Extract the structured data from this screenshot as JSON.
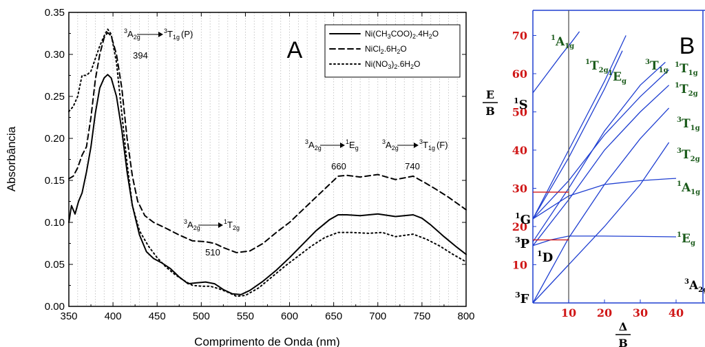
{
  "chart_data": [
    {
      "type": "line",
      "panel_label": "A",
      "xlabel": "Comprimento de Onda (nm)",
      "ylabel": "Absorbância",
      "xlim": [
        350,
        800
      ],
      "ylim": [
        0.0,
        0.35
      ],
      "x_ticks": [
        "350",
        "400",
        "450",
        "500",
        "550",
        "600",
        "650",
        "700",
        "750",
        "800"
      ],
      "y_ticks": [
        "0.00",
        "0.05",
        "0.10",
        "0.15",
        "0.20",
        "0.25",
        "0.30",
        "0.35"
      ],
      "grid": "vertical dotted every 10 nm",
      "legend_position": "top-right",
      "series": [
        {
          "name": "Ni(CH3COO)2.4H2O",
          "legend": {
            "base": "Ni(CH",
            "s1": "3",
            "m1": "COO)",
            "s2": "2",
            "m2": ".4H",
            "s3": "2",
            "end": "O"
          },
          "style": "solid",
          "points": [
            [
              350,
              0.1
            ],
            [
              353,
              0.12
            ],
            [
              357,
              0.11
            ],
            [
              361,
              0.125
            ],
            [
              365,
              0.135
            ],
            [
              370,
              0.16
            ],
            [
              375,
              0.19
            ],
            [
              380,
              0.23
            ],
            [
              385,
              0.26
            ],
            [
              390,
              0.272
            ],
            [
              394,
              0.276
            ],
            [
              398,
              0.272
            ],
            [
              404,
              0.25
            ],
            [
              410,
              0.21
            ],
            [
              416,
              0.16
            ],
            [
              422,
              0.12
            ],
            [
              430,
              0.085
            ],
            [
              438,
              0.065
            ],
            [
              446,
              0.057
            ],
            [
              455,
              0.052
            ],
            [
              465,
              0.045
            ],
            [
              475,
              0.035
            ],
            [
              485,
              0.027
            ],
            [
              495,
              0.028
            ],
            [
              505,
              0.029
            ],
            [
              515,
              0.027
            ],
            [
              525,
              0.02
            ],
            [
              535,
              0.015
            ],
            [
              545,
              0.014
            ],
            [
              555,
              0.019
            ],
            [
              570,
              0.03
            ],
            [
              585,
              0.043
            ],
            [
              600,
              0.058
            ],
            [
              615,
              0.074
            ],
            [
              630,
              0.09
            ],
            [
              645,
              0.103
            ],
            [
              655,
              0.109
            ],
            [
              665,
              0.109
            ],
            [
              680,
              0.108
            ],
            [
              700,
              0.11
            ],
            [
              720,
              0.107
            ],
            [
              740,
              0.109
            ],
            [
              750,
              0.105
            ],
            [
              760,
              0.097
            ],
            [
              775,
              0.083
            ],
            [
              790,
              0.07
            ],
            [
              800,
              0.062
            ]
          ]
        },
        {
          "name": "NiCl2.6H2O",
          "legend": {
            "base": "NiCl",
            "s1": "2",
            "m1": ".6H",
            "s2": "2",
            "m2": "O",
            "s3": "",
            "end": ""
          },
          "style": "dashed",
          "points": [
            [
              350,
              0.152
            ],
            [
              355,
              0.155
            ],
            [
              360,
              0.165
            ],
            [
              365,
              0.18
            ],
            [
              370,
              0.19
            ],
            [
              375,
              0.225
            ],
            [
              380,
              0.27
            ],
            [
              385,
              0.3
            ],
            [
              390,
              0.32
            ],
            [
              394,
              0.326
            ],
            [
              398,
              0.322
            ],
            [
              404,
              0.3
            ],
            [
              410,
              0.26
            ],
            [
              416,
              0.2
            ],
            [
              422,
              0.155
            ],
            [
              428,
              0.125
            ],
            [
              436,
              0.108
            ],
            [
              446,
              0.1
            ],
            [
              460,
              0.093
            ],
            [
              475,
              0.085
            ],
            [
              490,
              0.078
            ],
            [
              505,
              0.077
            ],
            [
              515,
              0.075
            ],
            [
              525,
              0.07
            ],
            [
              540,
              0.064
            ],
            [
              555,
              0.066
            ],
            [
              570,
              0.075
            ],
            [
              585,
              0.088
            ],
            [
              600,
              0.1
            ],
            [
              615,
              0.115
            ],
            [
              630,
              0.13
            ],
            [
              645,
              0.145
            ],
            [
              655,
              0.155
            ],
            [
              665,
              0.156
            ],
            [
              680,
              0.154
            ],
            [
              700,
              0.157
            ],
            [
              720,
              0.151
            ],
            [
              740,
              0.155
            ],
            [
              752,
              0.148
            ],
            [
              765,
              0.14
            ],
            [
              780,
              0.13
            ],
            [
              800,
              0.115
            ]
          ]
        },
        {
          "name": "Ni(NO3)2.6H2O",
          "legend": {
            "base": "Ni(NO",
            "s1": "3",
            "m1": ")",
            "s2": "2",
            "m2": ".6H",
            "s3": "2",
            "end": "O"
          },
          "style": "dotted",
          "points": [
            [
              350,
              0.232
            ],
            [
              355,
              0.238
            ],
            [
              360,
              0.25
            ],
            [
              365,
              0.275
            ],
            [
              370,
              0.275
            ],
            [
              375,
              0.28
            ],
            [
              380,
              0.295
            ],
            [
              385,
              0.31
            ],
            [
              390,
              0.322
            ],
            [
              394,
              0.33
            ],
            [
              398,
              0.324
            ],
            [
              404,
              0.29
            ],
            [
              410,
              0.23
            ],
            [
              416,
              0.17
            ],
            [
              422,
              0.12
            ],
            [
              430,
              0.09
            ],
            [
              440,
              0.072
            ],
            [
              450,
              0.058
            ],
            [
              460,
              0.047
            ],
            [
              470,
              0.038
            ],
            [
              480,
              0.031
            ],
            [
              490,
              0.025
            ],
            [
              500,
              0.024
            ],
            [
              510,
              0.024
            ],
            [
              520,
              0.021
            ],
            [
              530,
              0.017
            ],
            [
              540,
              0.012
            ],
            [
              550,
              0.013
            ],
            [
              565,
              0.022
            ],
            [
              580,
              0.035
            ],
            [
              595,
              0.048
            ],
            [
              610,
              0.06
            ],
            [
              625,
              0.072
            ],
            [
              640,
              0.082
            ],
            [
              655,
              0.088
            ],
            [
              670,
              0.088
            ],
            [
              690,
              0.087
            ],
            [
              705,
              0.088
            ],
            [
              720,
              0.083
            ],
            [
              740,
              0.086
            ],
            [
              755,
              0.08
            ],
            [
              770,
              0.072
            ],
            [
              785,
              0.062
            ],
            [
              800,
              0.053
            ]
          ]
        }
      ],
      "annotations": [
        {
          "from": "3A2g",
          "to": "3T1g (P)",
          "from_base": "A",
          "from_sub": "2g",
          "to_base": "T",
          "to_sub": "1g",
          "to_tail": "(P)",
          "value": "394"
        },
        {
          "from": "3A2g",
          "to": "1T2g",
          "from_base": "A",
          "from_sub": "2g",
          "to_base": "T",
          "to_sub": "2g",
          "to_tail": "",
          "value": "510"
        },
        {
          "from": "3A2g",
          "to": "1Eg",
          "from_base": "A",
          "from_sub": "2g",
          "to_base": "E",
          "to_sub": "g",
          "to_tail": "",
          "value": "660"
        },
        {
          "from": "3A2g",
          "to": "3T1g (F)",
          "from_base": "A",
          "from_sub": "2g",
          "to_base": "T",
          "to_sub": "1g",
          "to_tail": "(F)",
          "value": "740"
        }
      ]
    },
    {
      "type": "line",
      "panel_label": "B",
      "ylabel": "E/B",
      "xlabel": "Δ/B",
      "x_ticks": [
        "10",
        "20",
        "30",
        "40"
      ],
      "y_ticks": [
        "10",
        "20",
        "30",
        "40",
        "50",
        "60",
        "70"
      ],
      "vertical_marker_x": 10,
      "colors": {
        "curves": "#1f3fd1",
        "axis_ticks": "#d01818",
        "left_terms": "#000000",
        "right_terms": "#1a5a1a"
      },
      "left_terms": [
        {
          "text": "1S",
          "base": "S",
          "sup": "1",
          "y": 55
        },
        {
          "text": "1G",
          "base": "G",
          "sup": "1",
          "y": 22
        },
        {
          "text": "3P",
          "base": "P",
          "sup": "3",
          "y": 16
        },
        {
          "text": "1D",
          "base": "D",
          "sup": "1",
          "y": 15
        },
        {
          "text": "3F",
          "base": "F",
          "sup": "3",
          "y": 0
        }
      ],
      "right_terms": [
        {
          "text": "1A1g",
          "base": "A",
          "sup": "1",
          "sub": "1g"
        },
        {
          "text": "1T2g",
          "base": "T",
          "sup": "1",
          "sub": "2g"
        },
        {
          "text": "1Eg",
          "base": "E",
          "sup": "1",
          "sub": "g"
        },
        {
          "text": "3T1g",
          "base": "T",
          "sup": "3",
          "sub": "1g"
        },
        {
          "text": "1T1g",
          "base": "T",
          "sup": "1",
          "sub": "1g"
        },
        {
          "text": "1T2g",
          "base": "T",
          "sup": "1",
          "sub": "2g"
        },
        {
          "text": "3T1g",
          "base": "T",
          "sup": "3",
          "sub": "1g"
        },
        {
          "text": "3T2g",
          "base": "T",
          "sup": "3",
          "sub": "2g"
        },
        {
          "text": "1A1g",
          "base": "A",
          "sup": "1",
          "sub": "1g"
        },
        {
          "text": "1Eg",
          "base": "E",
          "sup": "1",
          "sub": "g"
        },
        {
          "text": "3A2g",
          "base": "A",
          "sup": "3",
          "sub": "2g"
        }
      ],
      "curves": [
        {
          "name": "1A1g-from-1S",
          "points": [
            [
              0,
              55
            ],
            [
              4,
              60
            ],
            [
              8,
              65
            ],
            [
              11,
              68.5
            ],
            [
              13,
              71
            ]
          ]
        },
        {
          "name": "1T2g-from-1G",
          "points": [
            [
              0,
              22
            ],
            [
              10,
              40
            ],
            [
              20,
              58
            ],
            [
              26,
              70
            ]
          ]
        },
        {
          "name": "1Eg-from-1G",
          "points": [
            [
              0,
              22
            ],
            [
              10,
              38
            ],
            [
              20,
              56
            ],
            [
              25,
              66
            ]
          ]
        },
        {
          "name": "3T1g-P",
          "points": [
            [
              0,
              16
            ],
            [
              10,
              30
            ],
            [
              20,
              45
            ],
            [
              30,
              57
            ],
            [
              37,
              63
            ]
          ]
        },
        {
          "name": "1T1g",
          "points": [
            [
              0,
              22
            ],
            [
              10,
              32
            ],
            [
              20,
              44
            ],
            [
              30,
              54
            ],
            [
              38,
              61
            ]
          ]
        },
        {
          "name": "1T2g-from-1D",
          "points": [
            [
              0,
              15
            ],
            [
              10,
              27
            ],
            [
              20,
              40
            ],
            [
              30,
              50
            ],
            [
              38,
              57
            ]
          ]
        },
        {
          "name": "3T1g-F",
          "points": [
            [
              0,
              0
            ],
            [
              10,
              17
            ],
            [
              20,
              31
            ],
            [
              30,
              43
            ],
            [
              38,
              51
            ]
          ]
        },
        {
          "name": "3T2g",
          "points": [
            [
              0,
              0
            ],
            [
              10,
              10
            ],
            [
              20,
              20
            ],
            [
              30,
              31
            ],
            [
              38,
              42
            ]
          ]
        },
        {
          "name": "1A1g-from-1G",
          "points": [
            [
              0,
              22
            ],
            [
              10,
              28
            ],
            [
              20,
              31
            ],
            [
              30,
              32
            ],
            [
              38,
              32.5
            ],
            [
              40,
              32.6
            ]
          ]
        },
        {
          "name": "1Eg-from-1D",
          "points": [
            [
              0,
              15
            ],
            [
              5,
              16.5
            ],
            [
              10,
              17.5
            ],
            [
              20,
              17.5
            ],
            [
              30,
              17.4
            ],
            [
              40,
              17.3
            ]
          ]
        }
      ],
      "red_marker_segments": [
        {
          "y": 29,
          "to_x": 10
        },
        {
          "y": 16.5,
          "to_x": 10
        }
      ]
    }
  ]
}
